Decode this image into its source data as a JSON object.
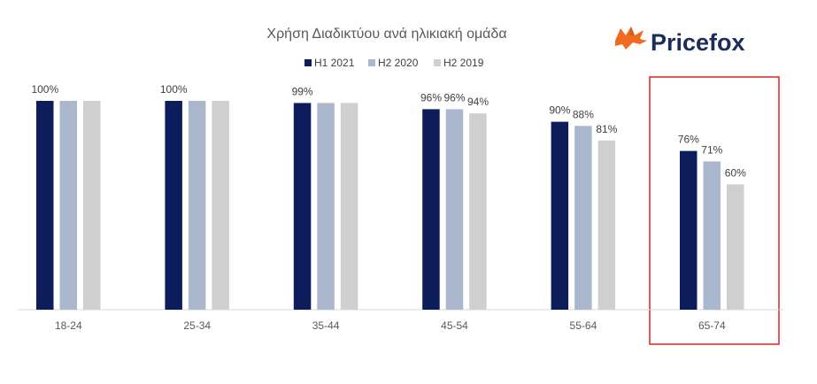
{
  "chart_data": {
    "type": "bar",
    "title": "Χρήση Διαδικτύου ανά ηλικιακή ομάδα",
    "categories": [
      "18-24",
      "25-34",
      "35-44",
      "45-54",
      "55-64",
      "65-74"
    ],
    "series": [
      {
        "name": "H1 2021",
        "color": "#0d1d5c",
        "values": [
          100,
          100,
          99,
          96,
          90,
          76
        ]
      },
      {
        "name": "H2 2020",
        "color": "#abb7cd",
        "values": [
          100,
          100,
          99,
          96,
          88,
          71
        ]
      },
      {
        "name": "H2 2019",
        "color": "#d0cfd0",
        "values": [
          100,
          100,
          99,
          94,
          81,
          60
        ]
      }
    ],
    "data_labels": [
      {
        "category": "18-24",
        "series_index": 0,
        "text": "100%"
      },
      {
        "category": "25-34",
        "series_index": 0,
        "text": "100%"
      },
      {
        "category": "35-44",
        "series_index": 0,
        "text": "99%"
      },
      {
        "category": "45-54",
        "series_index": 0,
        "text": "96%"
      },
      {
        "category": "45-54",
        "series_index": 1,
        "text": "96%"
      },
      {
        "category": "45-54",
        "series_index": 2,
        "text": "94%"
      },
      {
        "category": "55-64",
        "series_index": 0,
        "text": "90%"
      },
      {
        "category": "55-64",
        "series_index": 1,
        "text": "88%"
      },
      {
        "category": "55-64",
        "series_index": 2,
        "text": "81%"
      },
      {
        "category": "65-74",
        "series_index": 0,
        "text": "76%"
      },
      {
        "category": "65-74",
        "series_index": 1,
        "text": "71%"
      },
      {
        "category": "65-74",
        "series_index": 2,
        "text": "60%"
      }
    ],
    "xlabel": "",
    "ylabel": "",
    "ylim": [
      0,
      100
    ],
    "grid": false,
    "legend_position": "top",
    "highlight": {
      "category": "65-74",
      "color": "#e0201b"
    }
  },
  "logo": {
    "text": "Pricefox",
    "icon": "fox-icon",
    "color": "#f26a21"
  }
}
